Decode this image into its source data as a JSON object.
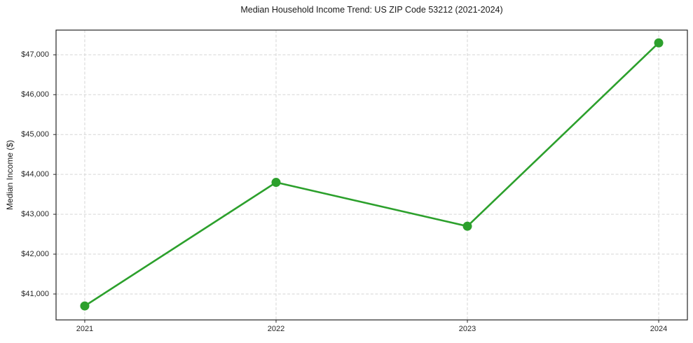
{
  "figure": {
    "background": "#ffffff"
  },
  "chart_data": {
    "type": "line",
    "title": "Median Household Income Trend: US ZIP Code 53212 (2021-2024)",
    "xlabel": "",
    "ylabel": "Median Income ($)",
    "x": [
      2021,
      2022,
      2023,
      2024
    ],
    "values": [
      40700,
      43800,
      42700,
      47300
    ],
    "xticks": [
      {
        "value": 2021,
        "label": "2021"
      },
      {
        "value": 2022,
        "label": "2022"
      },
      {
        "value": 2023,
        "label": "2023"
      },
      {
        "value": 2024,
        "label": "2024"
      }
    ],
    "yticks": [
      {
        "value": 41000,
        "label": "$41,000"
      },
      {
        "value": 42000,
        "label": "$42,000"
      },
      {
        "value": 43000,
        "label": "$43,000"
      },
      {
        "value": 44000,
        "label": "$44,000"
      },
      {
        "value": 45000,
        "label": "$45,000"
      },
      {
        "value": 46000,
        "label": "$46,000"
      },
      {
        "value": 47000,
        "label": "$47,000"
      }
    ],
    "xlim": [
      2020.85,
      2024.15
    ],
    "ylim": [
      40350,
      47620
    ],
    "grid": true,
    "grid_style": "dashed",
    "grid_color": "#d6d6d6",
    "axis_color": "#262626",
    "line_color": "#2ca02c",
    "marker": "circle",
    "legend": "none"
  }
}
